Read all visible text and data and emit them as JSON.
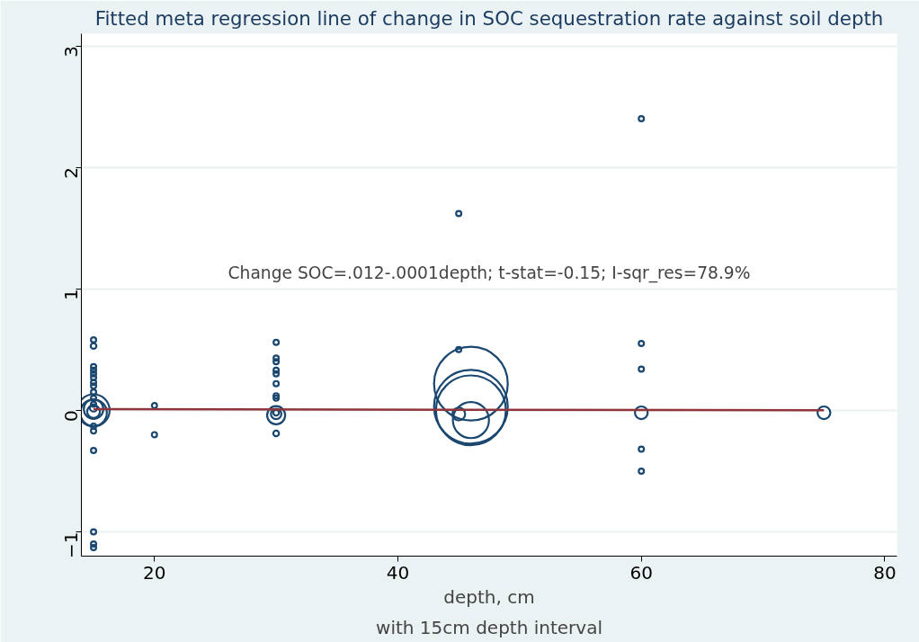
{
  "chart_data": {
    "type": "bubble",
    "title": "Fitted meta regression line of change in SOC sequestration rate against soil depth",
    "xlabel": "depth, cm",
    "annotations": [
      "Change SOC=.012-.0001depth; t-stat=-0.15; I-sqr_res=78.9%",
      "with 15cm depth interval"
    ],
    "xlim": [
      14,
      81
    ],
    "xticks": [
      20,
      40,
      60,
      80
    ],
    "ylim": [
      -1.2,
      3.1
    ],
    "yticks": [
      -1,
      0,
      1,
      2,
      3
    ],
    "grid": "y",
    "series": [
      {
        "color": "#1a476f",
        "x": [
          15,
          15,
          15,
          15,
          15,
          15,
          15,
          15,
          15,
          15,
          15,
          15,
          15,
          15,
          15,
          15,
          15,
          15,
          15,
          15,
          15,
          15,
          20,
          20,
          30,
          30,
          30,
          30,
          30,
          30,
          30,
          30,
          30,
          30,
          30,
          30,
          45,
          45,
          45,
          46,
          46,
          46,
          46,
          60,
          60,
          60,
          60,
          60,
          60,
          75
        ],
        "values": [
          0.58,
          0.53,
          0.36,
          0.33,
          0.3,
          0.27,
          0.23,
          0.2,
          0.15,
          0.1,
          0.05,
          0,
          -0.02,
          0.01,
          -0.01,
          0.02,
          -0.13,
          -0.17,
          -0.33,
          -1.0,
          -1.1,
          -1.13,
          0.04,
          -0.2,
          0.56,
          0.43,
          0.4,
          0.33,
          0.3,
          0.22,
          0.12,
          0.1,
          -0.04,
          -0.03,
          -0.02,
          -0.19,
          1.62,
          0.5,
          -0.03,
          0.22,
          0.03,
          0,
          -0.08,
          2.4,
          0.55,
          0.34,
          -0.02,
          -0.32,
          -0.5,
          -0.02
        ],
        "sizes": [
          0.005,
          0.006,
          0.005,
          0.005,
          0.005,
          0.005,
          0.005,
          0.005,
          0.005,
          0.005,
          0.005,
          0.19,
          0.13,
          0.07,
          0.03,
          0.01,
          0.005,
          0.005,
          0.005,
          0.005,
          0.005,
          0.005,
          0.005,
          0.005,
          0.005,
          0.005,
          0.005,
          0.005,
          0.005,
          0.005,
          0.005,
          0.005,
          0.06,
          0.02,
          0.006,
          0.006,
          0.005,
          0.005,
          0.03,
          1,
          1,
          0.9,
          0.24,
          0.005,
          0.005,
          0.005,
          0.03,
          0.005,
          0.005,
          0.03
        ]
      },
      {
        "type": "line",
        "color": "#90353b",
        "x": [
          15,
          75
        ],
        "values": [
          0.01,
          0.0
        ]
      }
    ]
  }
}
